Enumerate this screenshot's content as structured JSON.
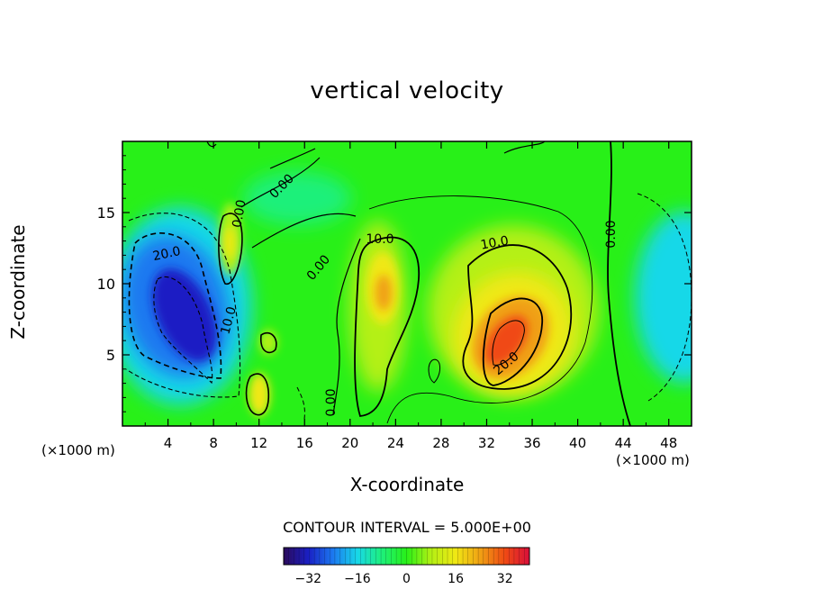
{
  "chart_data": {
    "type": "heatmap",
    "title": "vertical velocity",
    "xlabel": "X-coordinate",
    "ylabel": "Z-coordinate",
    "x_unit_label_left": "(×1000 m)",
    "x_unit_label_right": "(×1000 m)",
    "xlim": [
      0,
      50
    ],
    "ylim": [
      0,
      20
    ],
    "x_ticks": [
      4,
      8,
      12,
      16,
      20,
      24,
      28,
      32,
      36,
      40,
      44,
      48
    ],
    "y_ticks": [
      5,
      10,
      15
    ],
    "contour_interval_text": "CONTOUR INTERVAL = 5.000E+00",
    "contour_interval": 5,
    "colorbar": {
      "range": [
        -40,
        40
      ],
      "ticks": [
        -32,
        -16,
        0,
        16,
        32
      ],
      "colors": [
        "#2b0a5a",
        "#1a1fc4",
        "#1c78f0",
        "#18d8e8",
        "#1ef07a",
        "#28f018",
        "#b4f014",
        "#f0e814",
        "#f0a014",
        "#f04a14",
        "#d80e3a"
      ]
    },
    "contour_labels": [
      "20.0",
      "0.00",
      "0.00",
      "10.0",
      "10.0",
      "0.00",
      "20.0",
      "0.00",
      "10.0",
      "0.00"
    ],
    "field_features": [
      {
        "kind": "downdraft",
        "x": 5,
        "z": 8,
        "peak": -32
      },
      {
        "kind": "updraft",
        "x": 33.5,
        "z": 6.5,
        "peak": 30
      },
      {
        "kind": "updraft",
        "x": 22.5,
        "z": 9.5,
        "peak": 16
      },
      {
        "kind": "updraft",
        "x": 9.5,
        "z": 13,
        "peak": 12
      },
      {
        "kind": "downdraft",
        "x": 48.5,
        "z": 9,
        "peak": -12
      }
    ]
  }
}
